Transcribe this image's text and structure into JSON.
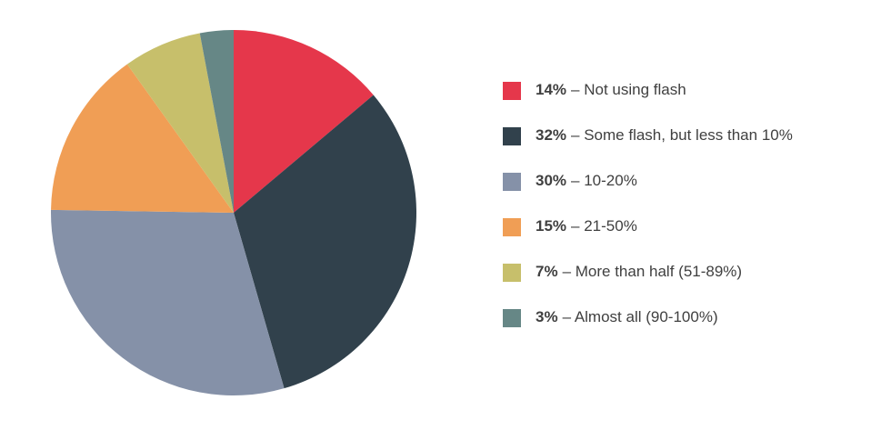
{
  "chart_data": {
    "type": "pie",
    "categories": [
      "– Not using flash",
      "– Some flash, but less than 10%",
      "– 10-20%",
      "– 21-50%",
      "– More than half (51-89%)",
      "– Almost all (90-100%)"
    ],
    "values": [
      14,
      32,
      30,
      15,
      7,
      3
    ],
    "value_labels": [
      "14%",
      "32%",
      "30%",
      "15%",
      "7%",
      "3%"
    ],
    "colors": [
      "#e5374b",
      "#31414c",
      "#8591a8",
      "#f09e55",
      "#c7bf6b",
      "#668786"
    ]
  }
}
